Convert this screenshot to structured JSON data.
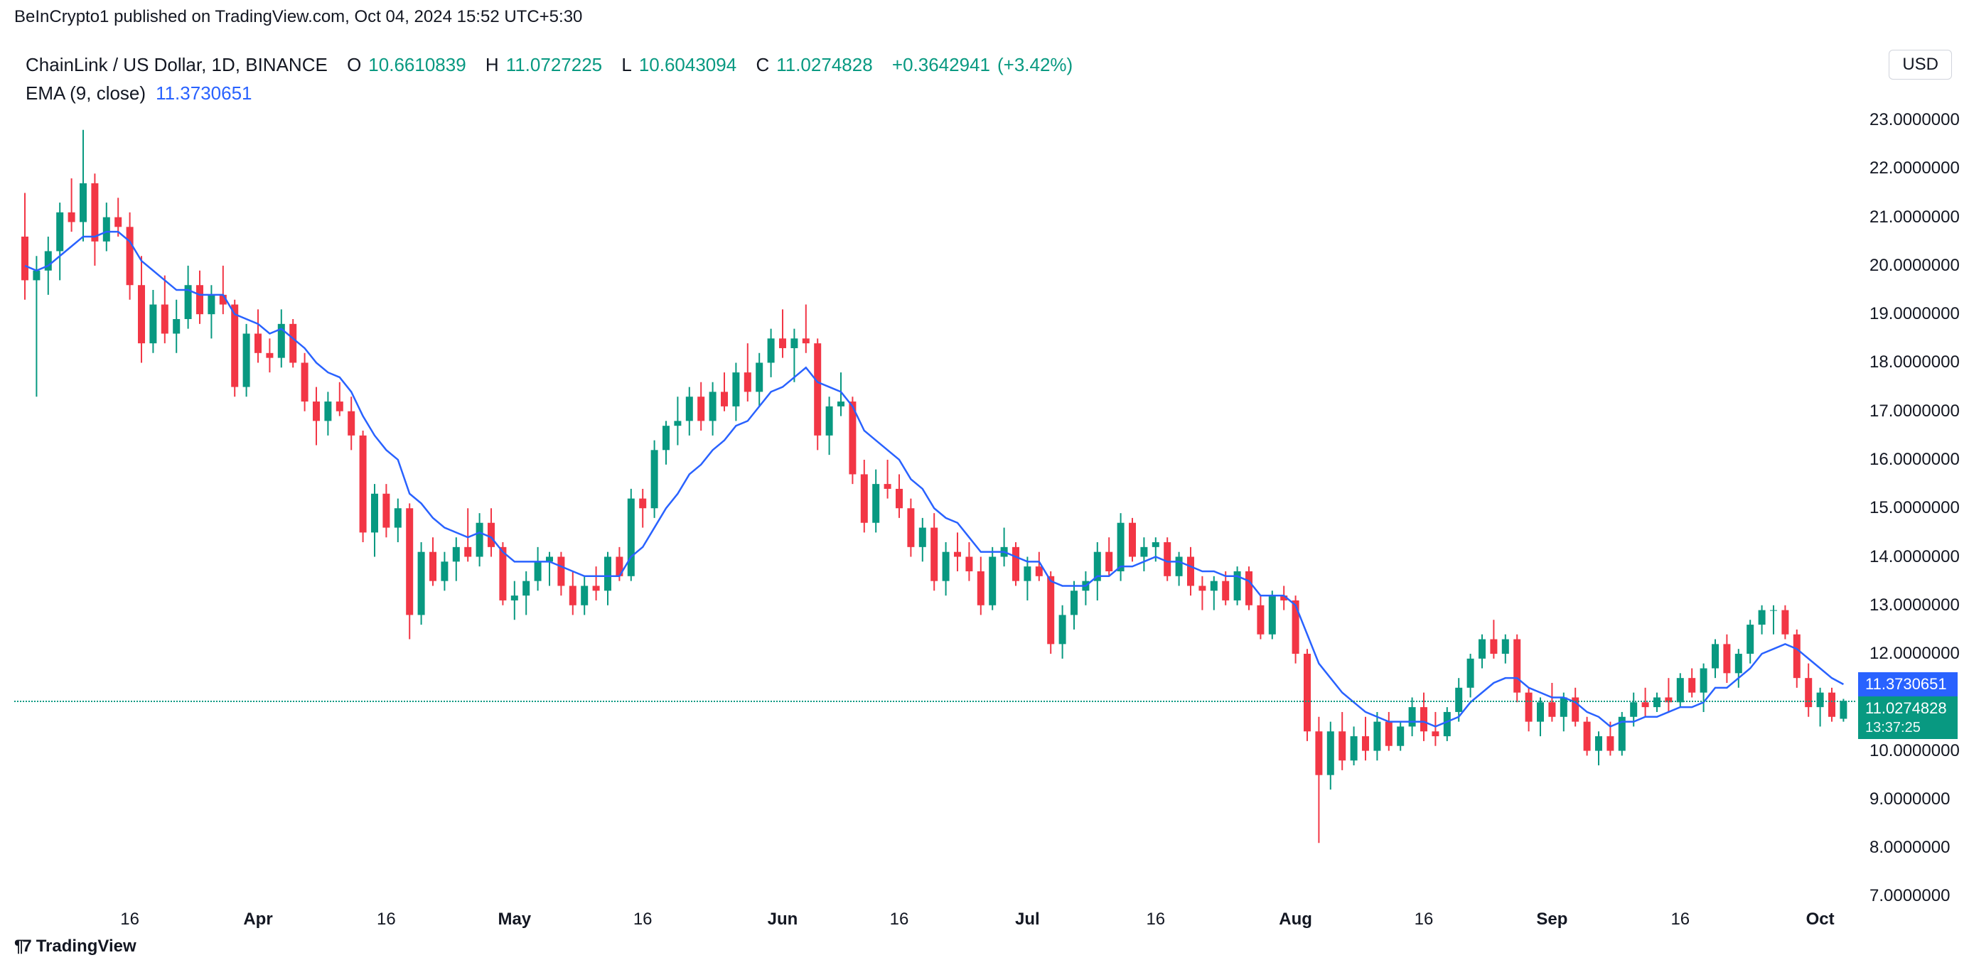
{
  "header": {
    "publisher_line": "BeInCrypto1 published on TradingView.com, Oct 04, 2024 15:52 UTC+5:30",
    "symbol": "ChainLink / US Dollar, 1D, BINANCE",
    "O_label": "O",
    "O_val": "10.6610839",
    "H_label": "H",
    "H_val": "11.0727225",
    "L_label": "L",
    "L_val": "10.6043094",
    "C_label": "C",
    "C_val": "11.0274828",
    "chg_val": "+0.3642941",
    "chg_pct": "(+3.42%)",
    "ema_label": "EMA (9, close)",
    "ema_val": "11.3730651",
    "currency": "USD"
  },
  "colors": {
    "up": "#089981",
    "down": "#f23645",
    "ema": "#2962ff",
    "text": "#131722",
    "grid": "#f0f3fa",
    "bg": "#ffffff"
  },
  "chart": {
    "ylim": [
      6.8,
      23.5
    ],
    "yticks": [
      7,
      8,
      9,
      10,
      11,
      12,
      13,
      14,
      15,
      16,
      17,
      18,
      19,
      20,
      21,
      22,
      23
    ],
    "ytick_labels": [
      "7.0000000",
      "8.0000000",
      "9.0000000",
      "10.0000000",
      "11.0000000",
      "12.0000000",
      "13.0000000",
      "14.0000000",
      "15.0000000",
      "16.0000000",
      "17.0000000",
      "18.0000000",
      "19.0000000",
      "20.0000000",
      "21.0000000",
      "22.0000000",
      "23.0000000"
    ],
    "close_price_line": 11.0274828,
    "ema_price_line": 11.3730651,
    "close_label_time": "13:37:25",
    "xticks": [
      {
        "i": 9,
        "label": "16",
        "bold": false
      },
      {
        "i": 20,
        "label": "Apr",
        "bold": true
      },
      {
        "i": 31,
        "label": "16",
        "bold": false
      },
      {
        "i": 42,
        "label": "May",
        "bold": true
      },
      {
        "i": 53,
        "label": "16",
        "bold": false
      },
      {
        "i": 65,
        "label": "Jun",
        "bold": true
      },
      {
        "i": 75,
        "label": "16",
        "bold": false
      },
      {
        "i": 86,
        "label": "Jul",
        "bold": true
      },
      {
        "i": 97,
        "label": "16",
        "bold": false
      },
      {
        "i": 109,
        "label": "Aug",
        "bold": true
      },
      {
        "i": 120,
        "label": "16",
        "bold": false
      },
      {
        "i": 131,
        "label": "Sep",
        "bold": true
      },
      {
        "i": 142,
        "label": "16",
        "bold": false
      },
      {
        "i": 154,
        "label": "Oct",
        "bold": true
      }
    ],
    "candle_width": 10,
    "candle_spacing": 16.4,
    "candles": [
      {
        "o": 20.6,
        "h": 21.5,
        "l": 19.3,
        "c": 19.7
      },
      {
        "o": 19.7,
        "h": 20.2,
        "l": 17.3,
        "c": 19.9
      },
      {
        "o": 19.9,
        "h": 20.6,
        "l": 19.4,
        "c": 20.3
      },
      {
        "o": 20.3,
        "h": 21.3,
        "l": 19.7,
        "c": 21.1
      },
      {
        "o": 21.1,
        "h": 21.8,
        "l": 20.7,
        "c": 20.9
      },
      {
        "o": 20.9,
        "h": 22.8,
        "l": 20.5,
        "c": 21.7
      },
      {
        "o": 21.7,
        "h": 21.9,
        "l": 20.0,
        "c": 20.5
      },
      {
        "o": 20.5,
        "h": 21.3,
        "l": 20.3,
        "c": 21.0
      },
      {
        "o": 21.0,
        "h": 21.4,
        "l": 20.6,
        "c": 20.8
      },
      {
        "o": 20.8,
        "h": 21.1,
        "l": 19.3,
        "c": 19.6
      },
      {
        "o": 19.6,
        "h": 20.2,
        "l": 18.0,
        "c": 18.4
      },
      {
        "o": 18.4,
        "h": 19.5,
        "l": 18.2,
        "c": 19.2
      },
      {
        "o": 19.2,
        "h": 19.8,
        "l": 18.4,
        "c": 18.6
      },
      {
        "o": 18.6,
        "h": 19.3,
        "l": 18.2,
        "c": 18.9
      },
      {
        "o": 18.9,
        "h": 20.0,
        "l": 18.7,
        "c": 19.6
      },
      {
        "o": 19.6,
        "h": 19.9,
        "l": 18.8,
        "c": 19.0
      },
      {
        "o": 19.0,
        "h": 19.6,
        "l": 18.5,
        "c": 19.4
      },
      {
        "o": 19.4,
        "h": 20.0,
        "l": 19.0,
        "c": 19.2
      },
      {
        "o": 19.2,
        "h": 19.3,
        "l": 17.3,
        "c": 17.5
      },
      {
        "o": 17.5,
        "h": 18.8,
        "l": 17.3,
        "c": 18.6
      },
      {
        "o": 18.6,
        "h": 19.1,
        "l": 18.0,
        "c": 18.2
      },
      {
        "o": 18.2,
        "h": 18.5,
        "l": 17.8,
        "c": 18.1
      },
      {
        "o": 18.1,
        "h": 19.1,
        "l": 17.9,
        "c": 18.8
      },
      {
        "o": 18.8,
        "h": 18.9,
        "l": 17.9,
        "c": 18.0
      },
      {
        "o": 18.0,
        "h": 18.2,
        "l": 17.0,
        "c": 17.2
      },
      {
        "o": 17.2,
        "h": 17.5,
        "l": 16.3,
        "c": 16.8
      },
      {
        "o": 16.8,
        "h": 17.4,
        "l": 16.5,
        "c": 17.2
      },
      {
        "o": 17.2,
        "h": 17.6,
        "l": 16.9,
        "c": 17.0
      },
      {
        "o": 17.0,
        "h": 17.3,
        "l": 16.2,
        "c": 16.5
      },
      {
        "o": 16.5,
        "h": 16.6,
        "l": 14.3,
        "c": 14.5
      },
      {
        "o": 14.5,
        "h": 15.5,
        "l": 14.0,
        "c": 15.3
      },
      {
        "o": 15.3,
        "h": 15.5,
        "l": 14.4,
        "c": 14.6
      },
      {
        "o": 14.6,
        "h": 15.2,
        "l": 14.3,
        "c": 15.0
      },
      {
        "o": 15.0,
        "h": 15.1,
        "l": 12.3,
        "c": 12.8
      },
      {
        "o": 12.8,
        "h": 14.3,
        "l": 12.6,
        "c": 14.1
      },
      {
        "o": 14.1,
        "h": 14.4,
        "l": 13.4,
        "c": 13.5
      },
      {
        "o": 13.5,
        "h": 14.1,
        "l": 13.3,
        "c": 13.9
      },
      {
        "o": 13.9,
        "h": 14.4,
        "l": 13.5,
        "c": 14.2
      },
      {
        "o": 14.2,
        "h": 15.0,
        "l": 13.9,
        "c": 14.0
      },
      {
        "o": 14.0,
        "h": 14.9,
        "l": 13.8,
        "c": 14.7
      },
      {
        "o": 14.7,
        "h": 15.0,
        "l": 14.0,
        "c": 14.2
      },
      {
        "o": 14.2,
        "h": 14.3,
        "l": 13.0,
        "c": 13.1
      },
      {
        "o": 13.1,
        "h": 13.5,
        "l": 12.7,
        "c": 13.2
      },
      {
        "o": 13.2,
        "h": 13.7,
        "l": 12.8,
        "c": 13.5
      },
      {
        "o": 13.5,
        "h": 14.2,
        "l": 13.3,
        "c": 13.9
      },
      {
        "o": 13.9,
        "h": 14.1,
        "l": 13.4,
        "c": 14.0
      },
      {
        "o": 14.0,
        "h": 14.1,
        "l": 13.2,
        "c": 13.4
      },
      {
        "o": 13.4,
        "h": 13.7,
        "l": 12.8,
        "c": 13.0
      },
      {
        "o": 13.0,
        "h": 13.6,
        "l": 12.8,
        "c": 13.4
      },
      {
        "o": 13.4,
        "h": 13.8,
        "l": 13.1,
        "c": 13.3
      },
      {
        "o": 13.3,
        "h": 14.1,
        "l": 13.0,
        "c": 14.0
      },
      {
        "o": 14.0,
        "h": 14.2,
        "l": 13.5,
        "c": 13.6
      },
      {
        "o": 13.6,
        "h": 15.4,
        "l": 13.5,
        "c": 15.2
      },
      {
        "o": 15.2,
        "h": 15.4,
        "l": 14.6,
        "c": 15.0
      },
      {
        "o": 15.0,
        "h": 16.4,
        "l": 14.8,
        "c": 16.2
      },
      {
        "o": 16.2,
        "h": 16.8,
        "l": 15.9,
        "c": 16.7
      },
      {
        "o": 16.7,
        "h": 17.3,
        "l": 16.3,
        "c": 16.8
      },
      {
        "o": 16.8,
        "h": 17.5,
        "l": 16.5,
        "c": 17.3
      },
      {
        "o": 17.3,
        "h": 17.6,
        "l": 16.6,
        "c": 16.8
      },
      {
        "o": 16.8,
        "h": 17.6,
        "l": 16.5,
        "c": 17.4
      },
      {
        "o": 17.4,
        "h": 17.8,
        "l": 17.0,
        "c": 17.1
      },
      {
        "o": 17.1,
        "h": 18.0,
        "l": 16.8,
        "c": 17.8
      },
      {
        "o": 17.8,
        "h": 18.4,
        "l": 17.2,
        "c": 17.4
      },
      {
        "o": 17.4,
        "h": 18.2,
        "l": 17.1,
        "c": 18.0
      },
      {
        "o": 18.0,
        "h": 18.7,
        "l": 17.7,
        "c": 18.5
      },
      {
        "o": 18.5,
        "h": 19.1,
        "l": 18.1,
        "c": 18.3
      },
      {
        "o": 18.3,
        "h": 18.7,
        "l": 17.6,
        "c": 18.5
      },
      {
        "o": 18.5,
        "h": 19.2,
        "l": 18.2,
        "c": 18.4
      },
      {
        "o": 18.4,
        "h": 18.5,
        "l": 16.2,
        "c": 16.5
      },
      {
        "o": 16.5,
        "h": 17.3,
        "l": 16.1,
        "c": 17.1
      },
      {
        "o": 17.1,
        "h": 17.8,
        "l": 16.9,
        "c": 17.2
      },
      {
        "o": 17.2,
        "h": 17.3,
        "l": 15.5,
        "c": 15.7
      },
      {
        "o": 15.7,
        "h": 16.0,
        "l": 14.5,
        "c": 14.7
      },
      {
        "o": 14.7,
        "h": 15.8,
        "l": 14.5,
        "c": 15.5
      },
      {
        "o": 15.5,
        "h": 16.0,
        "l": 15.2,
        "c": 15.4
      },
      {
        "o": 15.4,
        "h": 15.7,
        "l": 14.8,
        "c": 15.0
      },
      {
        "o": 15.0,
        "h": 15.2,
        "l": 14.0,
        "c": 14.2
      },
      {
        "o": 14.2,
        "h": 14.8,
        "l": 13.9,
        "c": 14.6
      },
      {
        "o": 14.6,
        "h": 14.9,
        "l": 13.3,
        "c": 13.5
      },
      {
        "o": 13.5,
        "h": 14.3,
        "l": 13.2,
        "c": 14.1
      },
      {
        "o": 14.1,
        "h": 14.5,
        "l": 13.7,
        "c": 14.0
      },
      {
        "o": 14.0,
        "h": 14.3,
        "l": 13.5,
        "c": 13.7
      },
      {
        "o": 13.7,
        "h": 14.0,
        "l": 12.8,
        "c": 13.0
      },
      {
        "o": 13.0,
        "h": 14.2,
        "l": 12.9,
        "c": 14.0
      },
      {
        "o": 14.0,
        "h": 14.6,
        "l": 13.8,
        "c": 14.2
      },
      {
        "o": 14.2,
        "h": 14.3,
        "l": 13.4,
        "c": 13.5
      },
      {
        "o": 13.5,
        "h": 14.0,
        "l": 13.1,
        "c": 13.8
      },
      {
        "o": 13.8,
        "h": 14.1,
        "l": 13.5,
        "c": 13.6
      },
      {
        "o": 13.6,
        "h": 13.7,
        "l": 12.0,
        "c": 12.2
      },
      {
        "o": 12.2,
        "h": 13.0,
        "l": 11.9,
        "c": 12.8
      },
      {
        "o": 12.8,
        "h": 13.5,
        "l": 12.5,
        "c": 13.3
      },
      {
        "o": 13.3,
        "h": 13.7,
        "l": 13.0,
        "c": 13.5
      },
      {
        "o": 13.5,
        "h": 14.3,
        "l": 13.1,
        "c": 14.1
      },
      {
        "o": 14.1,
        "h": 14.4,
        "l": 13.6,
        "c": 13.7
      },
      {
        "o": 13.7,
        "h": 14.9,
        "l": 13.5,
        "c": 14.7
      },
      {
        "o": 14.7,
        "h": 14.8,
        "l": 13.9,
        "c": 14.0
      },
      {
        "o": 14.0,
        "h": 14.4,
        "l": 13.7,
        "c": 14.2
      },
      {
        "o": 14.2,
        "h": 14.4,
        "l": 13.9,
        "c": 14.3
      },
      {
        "o": 14.3,
        "h": 14.4,
        "l": 13.5,
        "c": 13.6
      },
      {
        "o": 13.6,
        "h": 14.1,
        "l": 13.4,
        "c": 14.0
      },
      {
        "o": 14.0,
        "h": 14.2,
        "l": 13.2,
        "c": 13.4
      },
      {
        "o": 13.4,
        "h": 13.6,
        "l": 12.9,
        "c": 13.3
      },
      {
        "o": 13.3,
        "h": 13.6,
        "l": 12.9,
        "c": 13.5
      },
      {
        "o": 13.5,
        "h": 13.7,
        "l": 13.0,
        "c": 13.1
      },
      {
        "o": 13.1,
        "h": 13.8,
        "l": 13.0,
        "c": 13.7
      },
      {
        "o": 13.7,
        "h": 13.8,
        "l": 12.9,
        "c": 13.0
      },
      {
        "o": 13.0,
        "h": 13.2,
        "l": 12.3,
        "c": 12.4
      },
      {
        "o": 12.4,
        "h": 13.3,
        "l": 12.3,
        "c": 13.2
      },
      {
        "o": 13.2,
        "h": 13.4,
        "l": 12.9,
        "c": 13.1
      },
      {
        "o": 13.1,
        "h": 13.2,
        "l": 11.8,
        "c": 12.0
      },
      {
        "o": 12.0,
        "h": 12.1,
        "l": 10.2,
        "c": 10.4
      },
      {
        "o": 10.4,
        "h": 10.7,
        "l": 8.1,
        "c": 9.5
      },
      {
        "o": 9.5,
        "h": 10.6,
        "l": 9.2,
        "c": 10.4
      },
      {
        "o": 10.4,
        "h": 10.8,
        "l": 9.6,
        "c": 9.8
      },
      {
        "o": 9.8,
        "h": 10.5,
        "l": 9.7,
        "c": 10.3
      },
      {
        "o": 10.3,
        "h": 10.7,
        "l": 9.8,
        "c": 10.0
      },
      {
        "o": 10.0,
        "h": 10.8,
        "l": 9.8,
        "c": 10.6
      },
      {
        "o": 10.6,
        "h": 10.8,
        "l": 10.0,
        "c": 10.1
      },
      {
        "o": 10.1,
        "h": 10.6,
        "l": 10.0,
        "c": 10.5
      },
      {
        "o": 10.5,
        "h": 11.1,
        "l": 10.3,
        "c": 10.9
      },
      {
        "o": 10.9,
        "h": 11.2,
        "l": 10.2,
        "c": 10.4
      },
      {
        "o": 10.4,
        "h": 10.8,
        "l": 10.1,
        "c": 10.3
      },
      {
        "o": 10.3,
        "h": 10.9,
        "l": 10.2,
        "c": 10.8
      },
      {
        "o": 10.8,
        "h": 11.5,
        "l": 10.6,
        "c": 11.3
      },
      {
        "o": 11.3,
        "h": 12.0,
        "l": 11.1,
        "c": 11.9
      },
      {
        "o": 11.9,
        "h": 12.4,
        "l": 11.7,
        "c": 12.3
      },
      {
        "o": 12.3,
        "h": 12.7,
        "l": 11.9,
        "c": 12.0
      },
      {
        "o": 12.0,
        "h": 12.4,
        "l": 11.8,
        "c": 12.3
      },
      {
        "o": 12.3,
        "h": 12.4,
        "l": 11.0,
        "c": 11.2
      },
      {
        "o": 11.2,
        "h": 11.3,
        "l": 10.4,
        "c": 10.6
      },
      {
        "o": 10.6,
        "h": 11.1,
        "l": 10.3,
        "c": 11.0
      },
      {
        "o": 11.0,
        "h": 11.4,
        "l": 10.6,
        "c": 10.7
      },
      {
        "o": 10.7,
        "h": 11.2,
        "l": 10.4,
        "c": 11.1
      },
      {
        "o": 11.1,
        "h": 11.3,
        "l": 10.5,
        "c": 10.6
      },
      {
        "o": 10.6,
        "h": 10.7,
        "l": 9.9,
        "c": 10.0
      },
      {
        "o": 10.0,
        "h": 10.4,
        "l": 9.7,
        "c": 10.3
      },
      {
        "o": 10.3,
        "h": 10.6,
        "l": 9.9,
        "c": 10.0
      },
      {
        "o": 10.0,
        "h": 10.8,
        "l": 9.9,
        "c": 10.7
      },
      {
        "o": 10.7,
        "h": 11.2,
        "l": 10.5,
        "c": 11.0
      },
      {
        "o": 11.0,
        "h": 11.3,
        "l": 10.7,
        "c": 10.9
      },
      {
        "o": 10.9,
        "h": 11.2,
        "l": 10.8,
        "c": 11.1
      },
      {
        "o": 11.1,
        "h": 11.5,
        "l": 10.8,
        "c": 11.0
      },
      {
        "o": 11.0,
        "h": 11.6,
        "l": 10.9,
        "c": 11.5
      },
      {
        "o": 11.5,
        "h": 11.7,
        "l": 11.1,
        "c": 11.2
      },
      {
        "o": 11.2,
        "h": 11.8,
        "l": 10.8,
        "c": 11.7
      },
      {
        "o": 11.7,
        "h": 12.3,
        "l": 11.5,
        "c": 12.2
      },
      {
        "o": 12.2,
        "h": 12.4,
        "l": 11.4,
        "c": 11.6
      },
      {
        "o": 11.6,
        "h": 12.1,
        "l": 11.3,
        "c": 12.0
      },
      {
        "o": 12.0,
        "h": 12.7,
        "l": 11.8,
        "c": 12.6
      },
      {
        "o": 12.6,
        "h": 13.0,
        "l": 12.4,
        "c": 12.9
      },
      {
        "o": 12.9,
        "h": 13.0,
        "l": 12.4,
        "c": 12.9
      },
      {
        "o": 12.9,
        "h": 13.0,
        "l": 12.3,
        "c": 12.4
      },
      {
        "o": 12.4,
        "h": 12.5,
        "l": 11.3,
        "c": 11.5
      },
      {
        "o": 11.5,
        "h": 11.8,
        "l": 10.7,
        "c": 10.9
      },
      {
        "o": 10.9,
        "h": 11.3,
        "l": 10.5,
        "c": 11.2
      },
      {
        "o": 11.2,
        "h": 11.3,
        "l": 10.6,
        "c": 10.7
      },
      {
        "o": 10.66,
        "h": 11.07,
        "l": 10.6,
        "c": 11.03
      }
    ],
    "ema": [
      20.0,
      19.9,
      20.0,
      20.2,
      20.4,
      20.6,
      20.6,
      20.7,
      20.7,
      20.5,
      20.1,
      19.9,
      19.7,
      19.5,
      19.5,
      19.4,
      19.4,
      19.4,
      19.0,
      18.9,
      18.8,
      18.6,
      18.7,
      18.5,
      18.3,
      18.0,
      17.8,
      17.7,
      17.4,
      16.9,
      16.5,
      16.2,
      16.0,
      15.3,
      15.1,
      14.8,
      14.6,
      14.5,
      14.4,
      14.5,
      14.4,
      14.1,
      13.9,
      13.9,
      13.9,
      13.9,
      13.8,
      13.7,
      13.6,
      13.6,
      13.6,
      13.6,
      14.0,
      14.2,
      14.6,
      15.0,
      15.3,
      15.7,
      15.9,
      16.2,
      16.4,
      16.7,
      16.8,
      17.1,
      17.4,
      17.5,
      17.7,
      17.9,
      17.6,
      17.5,
      17.4,
      17.1,
      16.6,
      16.4,
      16.2,
      16.0,
      15.6,
      15.4,
      15.0,
      14.8,
      14.7,
      14.4,
      14.1,
      14.1,
      14.1,
      14.0,
      13.9,
      13.9,
      13.5,
      13.4,
      13.4,
      13.4,
      13.6,
      13.6,
      13.8,
      13.8,
      13.9,
      14.0,
      13.9,
      13.9,
      13.8,
      13.7,
      13.7,
      13.6,
      13.6,
      13.5,
      13.2,
      13.2,
      13.2,
      13.0,
      12.4,
      11.8,
      11.5,
      11.2,
      11.0,
      10.8,
      10.7,
      10.6,
      10.6,
      10.6,
      10.6,
      10.5,
      10.6,
      10.7,
      11.0,
      11.2,
      11.4,
      11.5,
      11.5,
      11.3,
      11.2,
      11.1,
      11.1,
      11.0,
      10.8,
      10.7,
      10.5,
      10.6,
      10.6,
      10.7,
      10.7,
      10.8,
      10.9,
      10.9,
      11.0,
      11.3,
      11.3,
      11.5,
      11.7,
      12.0,
      12.1,
      12.2,
      12.1,
      11.9,
      11.7,
      11.5,
      11.37
    ]
  },
  "footer": {
    "logo_text": "TradingView"
  }
}
